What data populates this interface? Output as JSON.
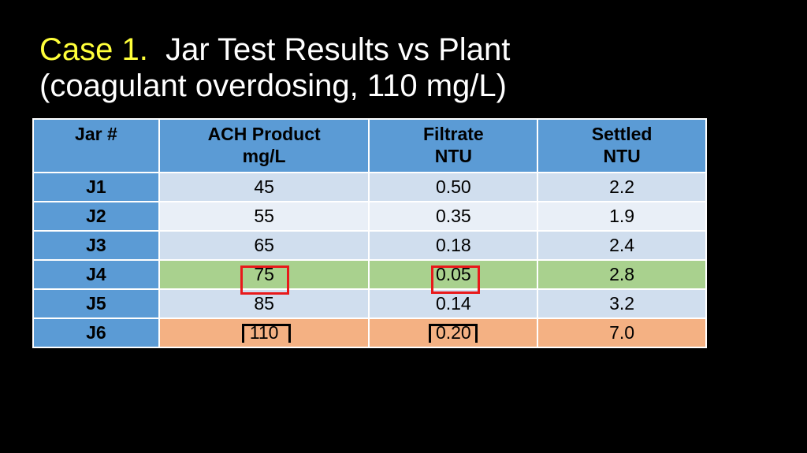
{
  "title": {
    "case": "Case 1.",
    "line1_rest": "Jar Test Results vs Plant",
    "line2": "(coagulant overdosing, 110 mg/L)"
  },
  "table": {
    "headers": [
      {
        "line1": "Jar #",
        "line2": ""
      },
      {
        "line1": "ACH Product",
        "line2": "mg/L"
      },
      {
        "line1": "Filtrate",
        "line2": "NTU"
      },
      {
        "line1": "Settled",
        "line2": "NTU"
      }
    ],
    "rows": [
      {
        "jar": "J1",
        "ach": "45",
        "filtrate": "0.50",
        "settled": "2.2"
      },
      {
        "jar": "J2",
        "ach": "55",
        "filtrate": "0.35",
        "settled": "1.9"
      },
      {
        "jar": "J3",
        "ach": "65",
        "filtrate": "0.18",
        "settled": "2.4"
      },
      {
        "jar": "J4",
        "ach": "75",
        "filtrate": "0.05",
        "settled": "2.8"
      },
      {
        "jar": "J5",
        "ach": "85",
        "filtrate": "0.14",
        "settled": "3.2"
      },
      {
        "jar": "J6",
        "ach": "110",
        "filtrate": "0.20",
        "settled": "7.0"
      }
    ]
  },
  "colors": {
    "background": "#000000",
    "title_accent": "#ffff3a",
    "header_blue": "#5b9bd5",
    "row_light": "#d0deee",
    "row_lighter": "#e9eff7",
    "highlight_green": "#a9d18e",
    "highlight_orange": "#f4b183",
    "marker_red": "#e8191b"
  }
}
